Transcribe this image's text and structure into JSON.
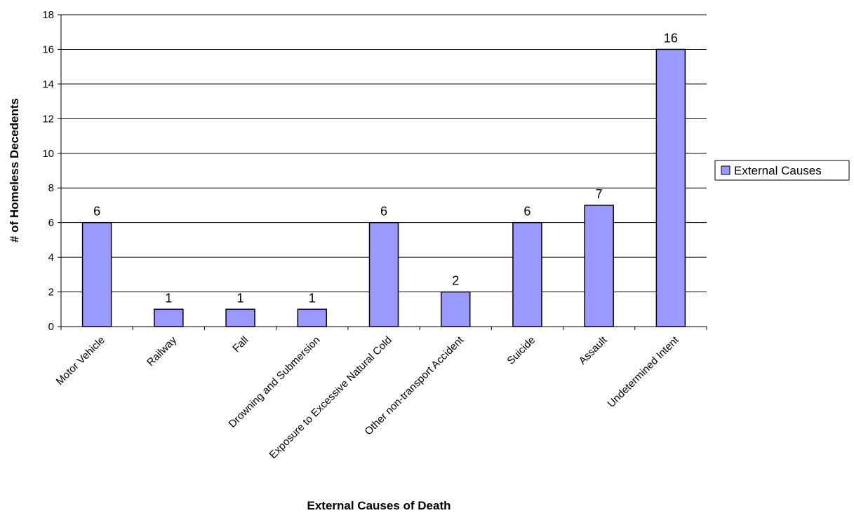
{
  "chart_data": {
    "type": "bar",
    "categories": [
      "Motor Vehicle",
      "Railway",
      "Fall",
      "Drowning and Submersion",
      "Exposure to Excessive Natural Cold",
      "Other non-transport Accident",
      "Suicide",
      "Assault",
      "Undetermined Intent"
    ],
    "series": [
      {
        "name": "External Causes",
        "values": [
          6,
          1,
          1,
          1,
          6,
          2,
          6,
          7,
          16
        ]
      }
    ],
    "data_labels": [
      "6",
      "1",
      "1",
      "1",
      "6",
      "2",
      "6",
      "7",
      "16"
    ],
    "xlabel": "External Causes of Death",
    "ylabel": "# of Homeless Decedents",
    "ylim": [
      0,
      18
    ],
    "yticks": [
      0,
      2,
      4,
      6,
      8,
      10,
      12,
      14,
      16,
      18
    ],
    "grid": true,
    "legend": "right",
    "colors": {
      "bar_fill": "#9999ff",
      "bar_stroke": "#000000",
      "grid": "#000000"
    }
  }
}
